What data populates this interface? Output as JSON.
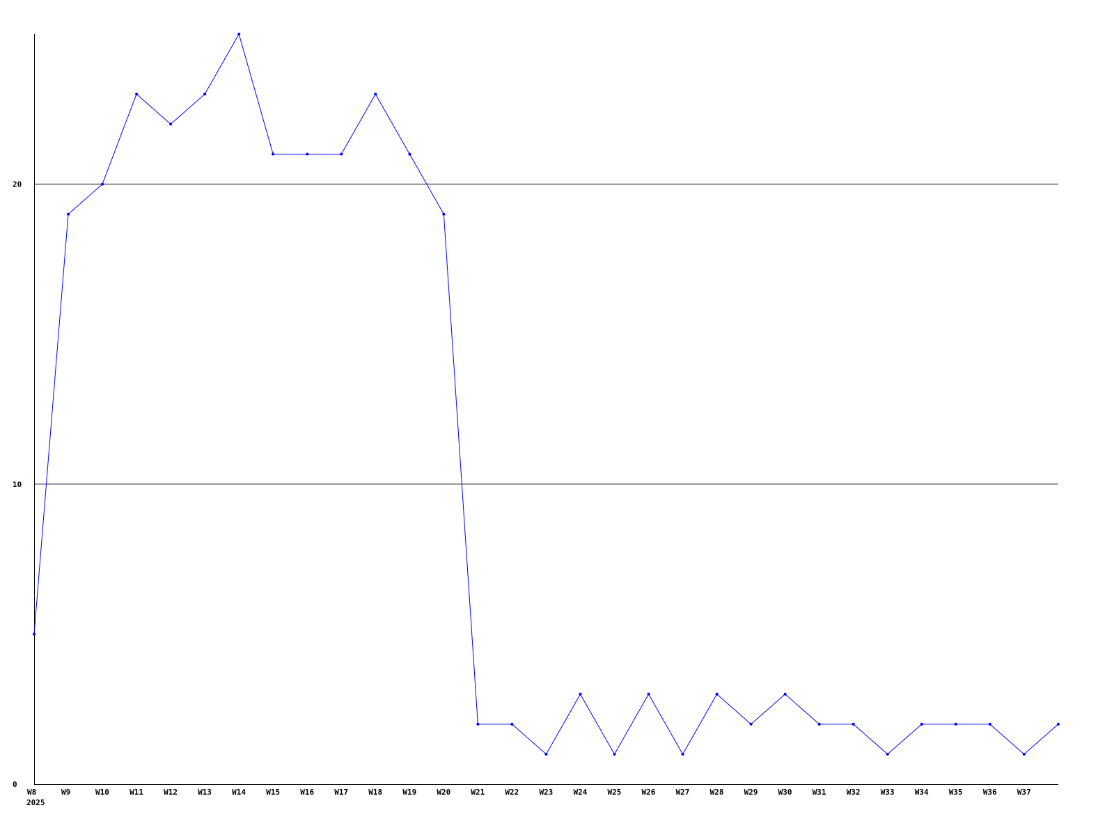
{
  "chart_data": {
    "type": "line",
    "title": "",
    "xlabel": "",
    "ylabel": "",
    "x_sublabel": "2025",
    "categories": [
      "W8",
      "W9",
      "W10",
      "W11",
      "W12",
      "W13",
      "W14",
      "W15",
      "W16",
      "W17",
      "W18",
      "W19",
      "W20",
      "W21",
      "W22",
      "W23",
      "W24",
      "W25",
      "W26",
      "W27",
      "W28",
      "W29",
      "W30",
      "W31",
      "W32",
      "W33",
      "W34",
      "W35",
      "W36",
      "W37",
      ""
    ],
    "values": [
      5,
      19,
      20,
      23,
      22,
      23,
      25,
      21,
      21,
      21,
      23,
      21,
      19,
      2,
      2,
      1,
      3,
      1,
      3,
      1,
      3,
      2,
      3,
      2,
      2,
      1,
      2,
      2,
      2,
      1,
      2
    ],
    "ylim": [
      0,
      25
    ],
    "yticks": [
      0,
      10,
      20
    ],
    "grid": true,
    "colors": {
      "line": "#0000ff",
      "grid": "#000000"
    }
  }
}
